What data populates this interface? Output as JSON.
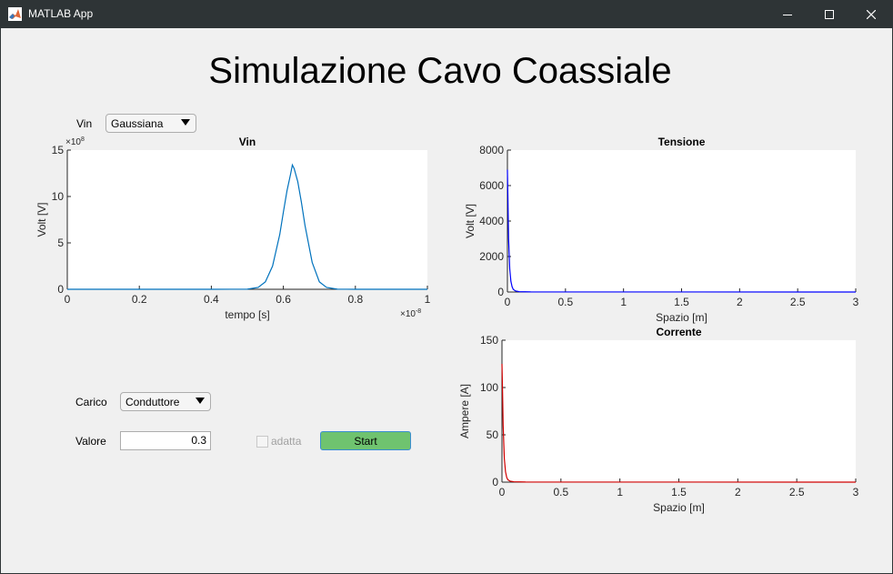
{
  "window": {
    "title": "MATLAB App"
  },
  "main_title": "Simulazione Cavo Coassiale",
  "controls": {
    "vin_label": "Vin",
    "vin_dropdown": "Gaussiana",
    "carico_label": "Carico",
    "carico_dropdown": "Conduttore",
    "valore_label": "Valore",
    "valore_value": "0.3",
    "adatta_label": "adatta",
    "adatta_checked": false,
    "start_label": "Start"
  },
  "colors": {
    "vin_line": "#0072bd",
    "tensione_line": "#0000ff",
    "corrente_line": "#d00000",
    "start_button": "#6fc36f"
  },
  "chart_data": [
    {
      "id": "vin",
      "type": "line",
      "title": "Vin",
      "xlabel": "tempo [s]",
      "ylabel": "Volt [V]",
      "x_multiplier": "×10",
      "x_exponent": "-8",
      "y_multiplier": "×10",
      "y_exponent": "8",
      "xlim": [
        0,
        1
      ],
      "ylim": [
        0,
        15
      ],
      "xticks": [
        0,
        0.2,
        0.4,
        0.6,
        0.8,
        1
      ],
      "xtick_labels": [
        "0",
        "0.2",
        "0.4",
        "0.6",
        "0.8",
        "1"
      ],
      "yticks": [
        0,
        5,
        10,
        15
      ],
      "ytick_labels": [
        "0",
        "5",
        "10",
        "15"
      ],
      "grid": false,
      "series": [
        {
          "x": [
            0,
            0.4,
            0.5,
            0.53,
            0.55,
            0.57,
            0.59,
            0.6,
            0.61,
            0.62,
            0.625,
            0.63,
            0.64,
            0.65,
            0.66,
            0.68,
            0.7,
            0.72,
            0.75,
            0.8,
            1
          ],
          "y": [
            0,
            0,
            0.01,
            0.2,
            0.8,
            2.5,
            5.9,
            8.3,
            10.6,
            12.4,
            13.4,
            13.0,
            11.6,
            9.4,
            6.9,
            2.9,
            0.8,
            0.2,
            0.01,
            0,
            0
          ]
        }
      ]
    },
    {
      "id": "tensione",
      "type": "line",
      "title": "Tensione",
      "xlabel": "Spazio [m]",
      "ylabel": "Volt [V]",
      "xlim": [
        0,
        3
      ],
      "ylim": [
        0,
        8000
      ],
      "xticks": [
        0,
        0.5,
        1,
        1.5,
        2,
        2.5,
        3
      ],
      "xtick_labels": [
        "0",
        "0.5",
        "1",
        "1.5",
        "2",
        "2.5",
        "3"
      ],
      "yticks": [
        0,
        2000,
        4000,
        6000,
        8000
      ],
      "ytick_labels": [
        "0",
        "2000",
        "4000",
        "6000",
        "8000"
      ],
      "grid": false,
      "series": [
        {
          "x": [
            0,
            0.005,
            0.01,
            0.02,
            0.03,
            0.04,
            0.05,
            0.07,
            0.1,
            0.2,
            3
          ],
          "y": [
            6900,
            5000,
            3000,
            1300,
            600,
            300,
            150,
            60,
            20,
            5,
            0
          ]
        }
      ]
    },
    {
      "id": "corrente",
      "type": "line",
      "title": "Corrente",
      "xlabel": "Spazio [m]",
      "ylabel": "Ampere [A]",
      "xlim": [
        0,
        3
      ],
      "ylim": [
        0,
        150
      ],
      "xticks": [
        0,
        0.5,
        1,
        1.5,
        2,
        2.5,
        3
      ],
      "xtick_labels": [
        "0",
        "0.5",
        "1",
        "1.5",
        "2",
        "2.5",
        "3"
      ],
      "yticks": [
        0,
        50,
        100,
        150
      ],
      "ytick_labels": [
        "0",
        "50",
        "100",
        "150"
      ],
      "grid": false,
      "series": [
        {
          "x": [
            0,
            0.005,
            0.01,
            0.02,
            0.03,
            0.04,
            0.05,
            0.07,
            0.1,
            0.2,
            3
          ],
          "y": [
            125,
            95,
            60,
            25,
            11,
            5,
            2.5,
            1,
            0.4,
            0.1,
            0
          ]
        }
      ]
    }
  ]
}
